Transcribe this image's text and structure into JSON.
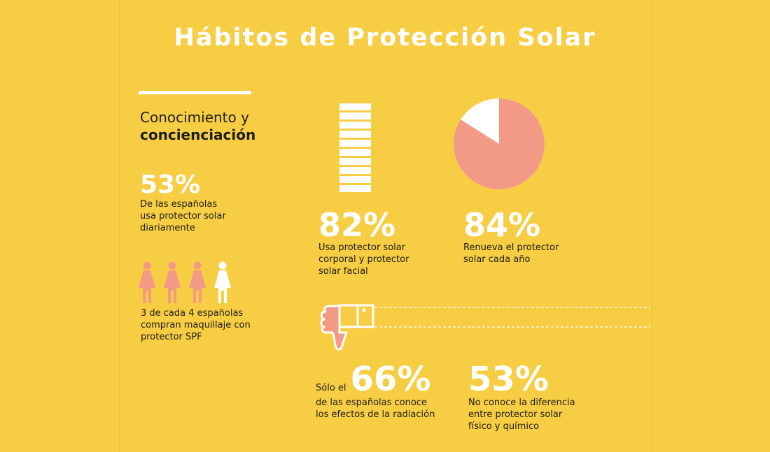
{
  "title": "Hábitos de Protección Solar",
  "section": {
    "line1": "Conocimiento y",
    "line2": "concienciación"
  },
  "stat_daily": {
    "value": "53%",
    "text": [
      "De las españolas",
      "usa protector solar",
      "diariamente"
    ]
  },
  "makeup": {
    "filled": 3,
    "total": 4,
    "text": [
      "3 de cada 4 españolas",
      "compran maquillaje con",
      "protector SPF"
    ]
  },
  "stat_body_face": {
    "value": "82%",
    "fraction": 0.82,
    "text": [
      "Usa protector solar",
      "corporal y protector",
      "solar facial"
    ]
  },
  "stat_renew": {
    "value": "84%",
    "fraction": 0.84,
    "text": [
      "Renueva el protector",
      "solar cada año"
    ]
  },
  "stat_radiation": {
    "prefix": "Sólo el",
    "value": "66%",
    "text": [
      "de las españolas conoce",
      "los efectos de la radiación"
    ]
  },
  "stat_difference": {
    "value": "53%",
    "text": [
      "No conoce la diferencia",
      "entre protector solar",
      "físico y químico"
    ]
  },
  "colors": {
    "background": "#f7cd44",
    "accent": "#f39a86",
    "white": "#ffffff"
  }
}
